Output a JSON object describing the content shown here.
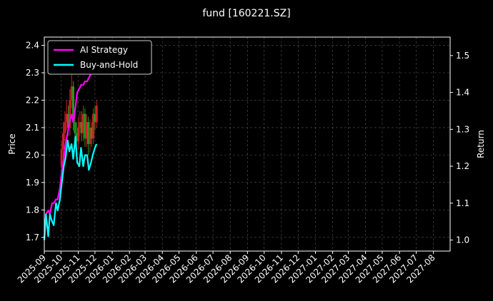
{
  "chart_data": {
    "type": "line",
    "title": "fund [160221.SZ]",
    "xlabel": "",
    "ylabel": "Price",
    "y2label": "Return",
    "x_ticks": [
      "2025-09",
      "2025-10",
      "2025-11",
      "2025-12",
      "2026-01",
      "2026-02",
      "2026-03",
      "2026-04",
      "2026-05",
      "2026-06",
      "2026-07",
      "2026-08",
      "2026-09",
      "2026-10",
      "2026-11",
      "2026-12",
      "2027-01",
      "2027-02",
      "2027-03",
      "2027-04",
      "2027-05",
      "2027-06",
      "2027-07",
      "2027-08"
    ],
    "xlim": [
      "2025-09-01",
      "2027-08-31"
    ],
    "ylim": [
      1.65,
      2.43
    ],
    "y_ticks": [
      1.7,
      1.8,
      1.9,
      2.0,
      2.1,
      2.2,
      2.3,
      2.4
    ],
    "y2lim": [
      0.97,
      1.55
    ],
    "y2_ticks": [
      1.0,
      1.1,
      1.2,
      1.3,
      1.4,
      1.5
    ],
    "grid": true,
    "legend_position": "top-left",
    "colors": {
      "background": "#000000",
      "grid": "#555555",
      "ai_strategy": "#ff00ff",
      "buy_and_hold": "#00ffff",
      "candle_up": "#cc2222",
      "candle_down": "#229922"
    },
    "series": [
      {
        "name": "AI Strategy",
        "axis": "right",
        "x": [
          "2025-09-01",
          "2025-09-04",
          "2025-09-08",
          "2025-09-11",
          "2025-09-15",
          "2025-09-18",
          "2025-09-22",
          "2025-09-25",
          "2025-09-29",
          "2025-10-02",
          "2025-10-06",
          "2025-10-09",
          "2025-10-13",
          "2025-10-16",
          "2025-10-20",
          "2025-10-23",
          "2025-10-27",
          "2025-10-30",
          "2025-11-03",
          "2025-11-06",
          "2025-11-10",
          "2025-11-13",
          "2025-11-17",
          "2025-11-20",
          "2025-11-24",
          "2025-11-27",
          "2025-12-01",
          "2025-12-04"
        ],
        "values": [
          1.0,
          1.07,
          1.08,
          1.07,
          1.1,
          1.1,
          1.11,
          1.11,
          1.14,
          1.18,
          1.22,
          1.26,
          1.29,
          1.32,
          1.34,
          1.32,
          1.36,
          1.4,
          1.41,
          1.42,
          1.42,
          1.43,
          1.43,
          1.44,
          1.45,
          1.46,
          1.49,
          1.51
        ]
      },
      {
        "name": "Buy-and-Hold",
        "axis": "right",
        "x": [
          "2025-09-01",
          "2025-09-04",
          "2025-09-08",
          "2025-09-11",
          "2025-09-15",
          "2025-09-18",
          "2025-09-22",
          "2025-09-25",
          "2025-09-29",
          "2025-10-02",
          "2025-10-06",
          "2025-10-09",
          "2025-10-13",
          "2025-10-16",
          "2025-10-20",
          "2025-10-23",
          "2025-10-27",
          "2025-10-30",
          "2025-11-03",
          "2025-11-06",
          "2025-11-10",
          "2025-11-13",
          "2025-11-17",
          "2025-11-20",
          "2025-11-24",
          "2025-11-27",
          "2025-12-01",
          "2025-12-04"
        ],
        "values": [
          1.0,
          1.07,
          1.01,
          1.07,
          1.05,
          1.04,
          1.1,
          1.08,
          1.11,
          1.15,
          1.2,
          1.22,
          1.27,
          1.24,
          1.26,
          1.22,
          1.28,
          1.21,
          1.2,
          1.25,
          1.2,
          1.23,
          1.23,
          1.19,
          1.21,
          1.23,
          1.25,
          1.26
        ]
      }
    ],
    "candles": {
      "x": [
        "2025-10-02",
        "2025-10-05",
        "2025-10-08",
        "2025-10-11",
        "2025-10-14",
        "2025-10-17",
        "2025-10-20",
        "2025-10-23",
        "2025-10-26",
        "2025-10-29",
        "2025-11-01",
        "2025-11-04",
        "2025-11-07",
        "2025-11-10",
        "2025-11-13",
        "2025-11-16",
        "2025-11-19",
        "2025-11-22",
        "2025-11-25",
        "2025-11-28",
        "2025-12-01",
        "2025-12-04"
      ],
      "open": [
        1.96,
        2.02,
        2.08,
        2.12,
        2.15,
        2.1,
        2.2,
        2.25,
        2.12,
        2.08,
        2.05,
        2.1,
        2.12,
        2.08,
        2.15,
        2.06,
        2.12,
        2.04,
        2.1,
        2.06,
        2.15,
        2.12
      ],
      "close": [
        2.02,
        2.08,
        2.12,
        2.15,
        2.1,
        2.2,
        2.25,
        2.12,
        2.08,
        2.05,
        2.1,
        2.12,
        2.08,
        2.15,
        2.06,
        2.12,
        2.04,
        2.1,
        2.06,
        2.15,
        2.12,
        2.18
      ],
      "high": [
        2.05,
        2.12,
        2.16,
        2.2,
        2.18,
        2.24,
        2.3,
        2.27,
        2.16,
        2.12,
        2.14,
        2.16,
        2.16,
        2.18,
        2.17,
        2.15,
        2.14,
        2.13,
        2.12,
        2.17,
        2.18,
        2.2
      ],
      "low": [
        1.93,
        1.99,
        2.05,
        2.09,
        2.07,
        2.07,
        2.17,
        2.09,
        2.05,
        2.02,
        2.02,
        2.07,
        2.05,
        2.05,
        2.03,
        2.03,
        2.0,
        2.01,
        2.03,
        2.04,
        2.09,
        2.1
      ]
    }
  }
}
